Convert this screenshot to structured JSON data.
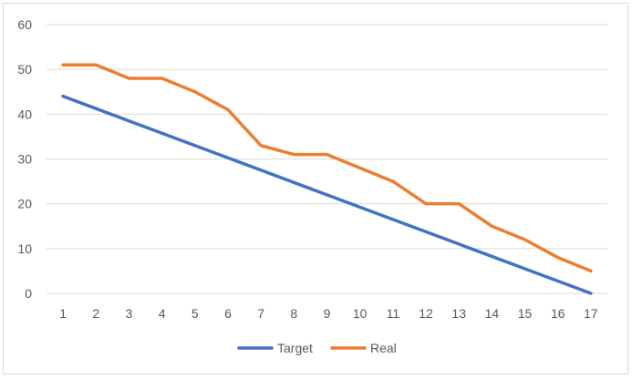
{
  "chart_data": {
    "type": "line",
    "title": "",
    "xlabel": "",
    "ylabel": "",
    "categories": [
      "1",
      "2",
      "3",
      "4",
      "5",
      "6",
      "7",
      "8",
      "9",
      "10",
      "11",
      "12",
      "13",
      "14",
      "15",
      "16",
      "17"
    ],
    "ylim": [
      0,
      60
    ],
    "yticks": [
      0,
      10,
      20,
      30,
      40,
      50,
      60
    ],
    "grid": true,
    "legend_position": "bottom",
    "series": [
      {
        "name": "Target",
        "color": "#4472c4",
        "values": [
          44,
          41.25,
          38.5,
          35.75,
          33,
          30.25,
          27.5,
          24.75,
          22,
          19.25,
          16.5,
          13.75,
          11,
          8.25,
          5.5,
          2.75,
          0
        ]
      },
      {
        "name": "Real",
        "color": "#ed7d31",
        "values": [
          51,
          51,
          48,
          48,
          45,
          41,
          33,
          31,
          31,
          28,
          25,
          20,
          20,
          15,
          12,
          8,
          5
        ]
      }
    ]
  }
}
